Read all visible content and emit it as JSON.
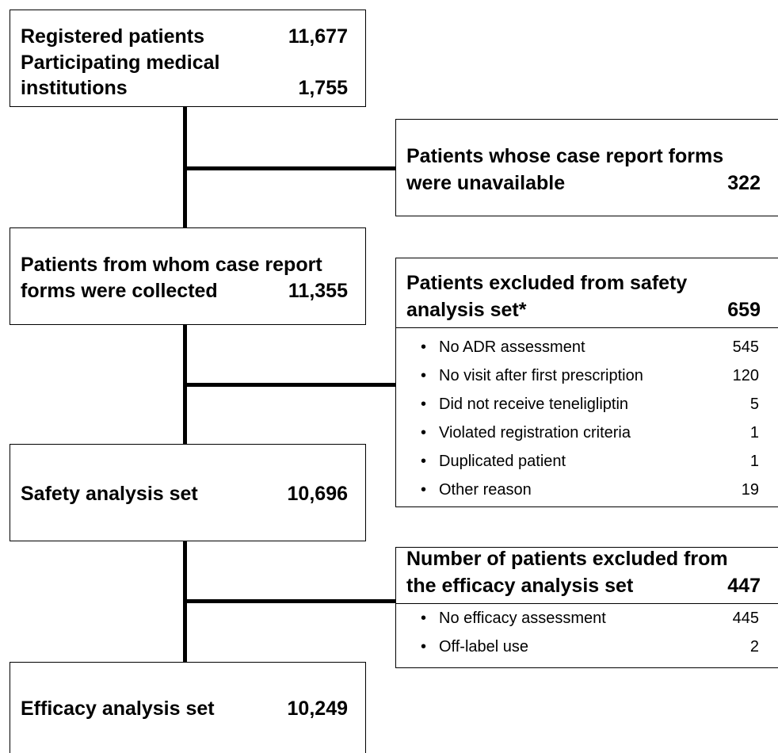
{
  "boxes": [
    {
      "rows": [
        {
          "label": "Registered patients",
          "value": "11,677"
        },
        {
          "label": "Participating medical"
        },
        {
          "label": "institutions",
          "value": "1,755"
        }
      ]
    },
    {
      "rows": [
        {
          "label": "Patients whose case report forms"
        },
        {
          "label": "were unavailable",
          "value": 322
        }
      ]
    },
    {
      "rows": [
        {
          "label": "Patients from whom case report"
        },
        {
          "label": "forms were collected",
          "value": "11,355"
        }
      ]
    },
    {
      "rows": [
        {
          "label": "Patients excluded from safety"
        },
        {
          "label": "analysis set*",
          "value": 659
        }
      ],
      "items": [
        {
          "label": "No ADR assessment",
          "value": 545
        },
        {
          "label": "No visit after first prescription",
          "value": 120
        },
        {
          "label": "Did not receive teneligliptin",
          "value": 5
        },
        {
          "label": "Violated registration criteria",
          "value": 1
        },
        {
          "label": "Duplicated patient",
          "value": 1
        },
        {
          "label": "Other reason",
          "value": 19
        }
      ]
    },
    {
      "rows": [
        {
          "label": "Safety analysis set",
          "value": "10,696"
        }
      ]
    },
    {
      "rows": [
        {
          "label": "Number of patients excluded from"
        },
        {
          "label": "the efficacy analysis set",
          "value": 447
        }
      ],
      "items": [
        {
          "label": "No efficacy assessment",
          "value": 445
        },
        {
          "label": "Off-label use",
          "value": 2
        }
      ]
    },
    {
      "rows": [
        {
          "label": "Efficacy analysis set",
          "value": "10,249"
        }
      ]
    }
  ]
}
